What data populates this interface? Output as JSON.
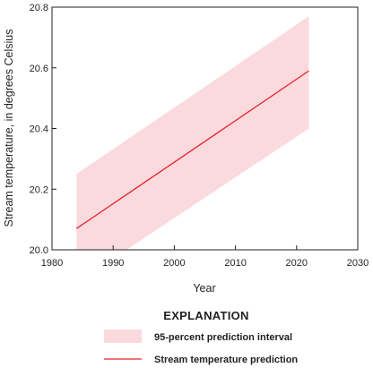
{
  "chart_data": {
    "type": "line",
    "xlabel": "Year",
    "ylabel": "Stream temperature, in degrees Celsius",
    "xlim": [
      1980,
      2030
    ],
    "ylim": [
      20.0,
      20.8
    ],
    "x_ticks": [
      "1980",
      "1990",
      "2000",
      "2010",
      "2020",
      "2030"
    ],
    "y_ticks": [
      "20.0",
      "20.2",
      "20.4",
      "20.6",
      "20.8"
    ],
    "grid": false,
    "series": [
      {
        "name": "Stream temperature prediction",
        "kind": "line",
        "color": "#e8202f",
        "x": [
          1984,
          2022
        ],
        "y": [
          20.07,
          20.59
        ]
      },
      {
        "name": "95-percent prediction interval",
        "kind": "band",
        "color": "#fadadd",
        "x": [
          1984,
          2022
        ],
        "lower": [
          19.89,
          20.4
        ],
        "upper": [
          20.25,
          20.77
        ]
      }
    ],
    "legend": {
      "title": "EXPLANATION",
      "placement": "bottom",
      "items": [
        "95-percent prediction interval",
        "Stream temperature prediction"
      ]
    }
  }
}
